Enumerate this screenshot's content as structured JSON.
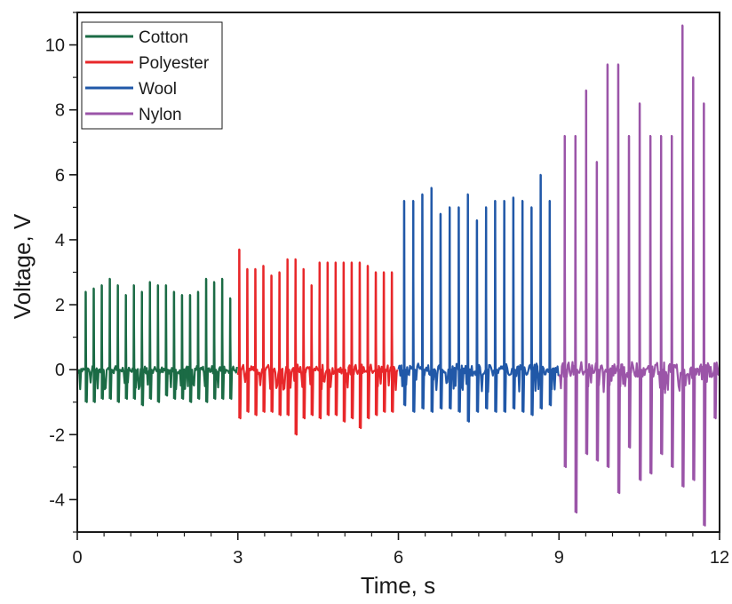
{
  "chart_data": {
    "type": "line",
    "title": "",
    "xlabel": "Time, s",
    "ylabel": "Voltage, V",
    "xlim": [
      0,
      12
    ],
    "ylim": [
      -5,
      11
    ],
    "xticks": [
      0,
      3,
      6,
      9,
      12
    ],
    "xtick_labels": [
      "0",
      "3",
      "6",
      "9",
      "12"
    ],
    "yticks": [
      -4,
      -2,
      0,
      2,
      4,
      6,
      8,
      10
    ],
    "ytick_labels": [
      "-4",
      "-2",
      "0",
      "2",
      "4",
      "6",
      "8",
      "10"
    ],
    "grid": false,
    "legend_position": "top-left",
    "series": [
      {
        "name": "Cotton",
        "color": "#1b6b45",
        "x_range": [
          0,
          3
        ],
        "pulse_times": [
          0.15,
          0.3,
          0.45,
          0.6,
          0.75,
          0.9,
          1.05,
          1.2,
          1.35,
          1.5,
          1.65,
          1.8,
          1.95,
          2.1,
          2.25,
          2.4,
          2.55,
          2.7,
          2.85
        ],
        "peaks": [
          2.4,
          2.5,
          2.6,
          2.8,
          2.6,
          2.3,
          2.6,
          2.4,
          2.7,
          2.6,
          2.6,
          2.4,
          2.3,
          2.3,
          2.4,
          2.8,
          2.7,
          2.8,
          2.2
        ],
        "troughs": [
          -1.0,
          -1.0,
          -0.9,
          -0.9,
          -1.0,
          -0.9,
          -0.9,
          -1.1,
          -0.9,
          -1.0,
          -0.8,
          -0.9,
          -0.9,
          -1.0,
          -0.9,
          -1.0,
          -0.9,
          -0.9,
          -0.9
        ]
      },
      {
        "name": "Polyester",
        "color": "#e8272a",
        "x_range": [
          3,
          6
        ],
        "pulse_times": [
          3.02,
          3.17,
          3.32,
          3.47,
          3.62,
          3.77,
          3.92,
          4.07,
          4.22,
          4.37,
          4.52,
          4.67,
          4.82,
          4.97,
          5.12,
          5.27,
          5.42,
          5.57,
          5.72,
          5.87
        ],
        "peaks": [
          3.7,
          3.1,
          3.1,
          3.2,
          2.9,
          3.0,
          3.4,
          3.4,
          3.1,
          2.6,
          3.3,
          3.3,
          3.3,
          3.3,
          3.3,
          3.3,
          3.2,
          3.0,
          3.0,
          3.0
        ],
        "troughs": [
          -1.5,
          -1.3,
          -1.4,
          -1.3,
          -1.3,
          -1.4,
          -1.4,
          -2.0,
          -1.5,
          -1.4,
          -1.5,
          -1.4,
          -1.4,
          -1.6,
          -1.5,
          -1.8,
          -1.5,
          -1.4,
          -1.3,
          -1.3
        ]
      },
      {
        "name": "Wool",
        "color": "#2158a8",
        "x_range": [
          6,
          9
        ],
        "pulse_times": [
          6.1,
          6.27,
          6.44,
          6.61,
          6.78,
          6.95,
          7.12,
          7.29,
          7.46,
          7.63,
          7.8,
          7.97,
          8.14,
          8.31,
          8.48,
          8.65,
          8.82
        ],
        "peaks": [
          5.2,
          5.2,
          5.4,
          5.6,
          4.8,
          5.0,
          5.0,
          5.4,
          4.6,
          5.0,
          5.2,
          5.2,
          5.3,
          5.2,
          5.0,
          6.0,
          5.2
        ],
        "troughs": [
          -1.1,
          -1.3,
          -1.2,
          -1.3,
          -1.2,
          -1.2,
          -1.3,
          -1.6,
          -1.3,
          -1.2,
          -1.3,
          -1.3,
          -1.2,
          -1.3,
          -1.4,
          -1.2,
          -1.1
        ]
      },
      {
        "name": "Nylon",
        "color": "#9b55a8",
        "x_range": [
          9,
          12
        ],
        "pulse_times": [
          9.1,
          9.3,
          9.5,
          9.7,
          9.9,
          10.1,
          10.3,
          10.5,
          10.7,
          10.9,
          11.1,
          11.3,
          11.5,
          11.7,
          11.9
        ],
        "peaks": [
          7.2,
          7.2,
          8.6,
          6.4,
          9.4,
          9.4,
          7.2,
          8.2,
          7.2,
          7.2,
          7.2,
          10.6,
          9.0,
          8.2,
          0.2
        ],
        "troughs": [
          -3.0,
          -4.4,
          -2.6,
          -2.8,
          -3.0,
          -3.8,
          -2.4,
          -3.4,
          -3.2,
          -2.6,
          -3.0,
          -3.6,
          -3.4,
          -4.8,
          -1.5
        ]
      }
    ]
  }
}
